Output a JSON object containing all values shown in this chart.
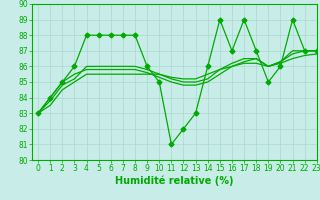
{
  "title": "",
  "xlabel": "Humidité relative (%)",
  "ylabel": "",
  "bg_color": "#c8ede8",
  "grid_color": "#aad8cc",
  "line_color": "#00aa00",
  "x": [
    0,
    1,
    2,
    3,
    4,
    5,
    6,
    7,
    8,
    9,
    10,
    11,
    12,
    13,
    14,
    15,
    16,
    17,
    18,
    19,
    20,
    21,
    22,
    23
  ],
  "y_main": [
    83,
    84,
    85,
    86,
    88,
    88,
    88,
    88,
    88,
    86,
    85,
    81,
    82,
    83,
    86,
    89,
    87,
    89,
    87,
    85,
    86,
    89,
    87,
    87
  ],
  "y_line1": [
    83.0,
    83.5,
    84.5,
    85.0,
    85.5,
    85.5,
    85.5,
    85.5,
    85.5,
    85.5,
    85.5,
    85.3,
    85.2,
    85.2,
    85.5,
    85.8,
    86.0,
    86.2,
    86.2,
    86.0,
    86.2,
    86.5,
    86.7,
    86.8
  ],
  "y_line2": [
    83.0,
    83.8,
    84.8,
    85.2,
    86.0,
    86.0,
    86.0,
    86.0,
    86.0,
    85.8,
    85.5,
    85.2,
    85.0,
    85.0,
    85.2,
    85.8,
    86.2,
    86.5,
    86.5,
    86.0,
    86.3,
    86.8,
    87.0,
    87.0
  ],
  "y_line3": [
    83.0,
    84.0,
    85.0,
    85.5,
    85.8,
    85.8,
    85.8,
    85.8,
    85.8,
    85.6,
    85.3,
    85.0,
    84.8,
    84.8,
    85.0,
    85.5,
    86.0,
    86.3,
    86.5,
    86.0,
    86.3,
    87.0,
    87.0,
    87.0
  ],
  "ylim": [
    80,
    90
  ],
  "xlim": [
    -0.5,
    23
  ],
  "yticks": [
    80,
    81,
    82,
    83,
    84,
    85,
    86,
    87,
    88,
    89,
    90
  ],
  "xticks": [
    0,
    1,
    2,
    3,
    4,
    5,
    6,
    7,
    8,
    9,
    10,
    11,
    12,
    13,
    14,
    15,
    16,
    17,
    18,
    19,
    20,
    21,
    22,
    23
  ],
  "marker": "D",
  "marker_size": 2.5,
  "line_width": 0.9,
  "xlabel_fontsize": 7,
  "tick_fontsize": 5.5
}
